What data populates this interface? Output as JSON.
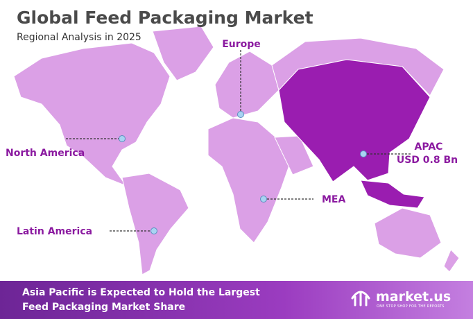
{
  "header": {
    "title": "Global Feed Packaging Market",
    "subtitle": "Regional Analysis in 2025"
  },
  "regions": {
    "europe": "Europe",
    "north_america": "North America",
    "latin_america": "Latin America",
    "mea": "MEA",
    "apac": "APAC",
    "apac_value": "USD 0.8 Bn"
  },
  "footer": {
    "line1": "Asia Pacific is Expected to Hold the Largest",
    "line2": "Feed Packaging Market Share"
  },
  "brand": {
    "name": "market.us",
    "tagline": "ONE STOP SHOP FOR THE REPORTS"
  }
}
